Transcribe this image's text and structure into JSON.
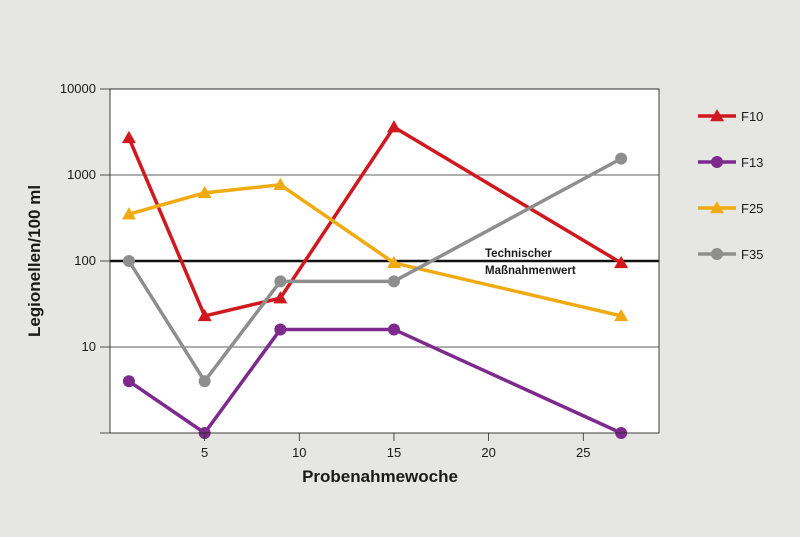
{
  "chart_data": {
    "type": "line",
    "title": "",
    "xlabel": "Probenahmewoche",
    "ylabel": "Legionellen/100 ml",
    "xlim": [
      0,
      29
    ],
    "ylim": [
      1,
      10000
    ],
    "y_scale": "log",
    "x_ticks": [
      5,
      10,
      15,
      20,
      25
    ],
    "y_ticks": [
      10,
      100,
      1000,
      10000
    ],
    "grid": "horizontal",
    "legend_position": "right",
    "reference_line": {
      "value": 100,
      "label_line1": "Technischer",
      "label_line2": "Maßnahmenwert",
      "color": "#111111"
    },
    "series": [
      {
        "name": "F10",
        "color": "#d0191e",
        "marker": "triangle",
        "x": [
          1,
          5,
          9,
          15,
          27
        ],
        "y": [
          2700,
          23,
          37,
          3600,
          95
        ]
      },
      {
        "name": "F13",
        "color": "#7d2a8c",
        "marker": "circle",
        "x": [
          1,
          5,
          9,
          15,
          27
        ],
        "y": [
          4,
          1,
          16,
          16,
          1
        ]
      },
      {
        "name": "F25",
        "color": "#f0ab12",
        "marker": "triangle",
        "x": [
          1,
          5,
          9,
          15,
          27
        ],
        "y": [
          350,
          620,
          770,
          95,
          23
        ]
      },
      {
        "name": "F35",
        "color": "#8e8e8e",
        "marker": "circle",
        "x": [
          1,
          5,
          9,
          15,
          27
        ],
        "y": [
          100,
          4,
          58,
          58,
          1550
        ]
      }
    ]
  }
}
